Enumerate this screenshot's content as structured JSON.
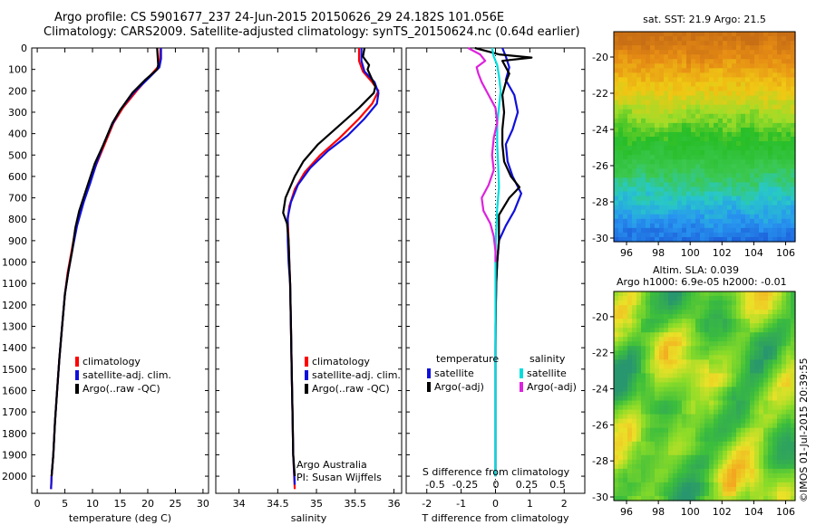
{
  "header": {
    "line1": "Argo profile: CS 5901677_237 24-Jun-2015 20150626_29 24.182S 101.056E",
    "line2": "Climatology: CARS2009. Satellite-adjusted climatology: synTS_20150624.nc (0.64d earlier)"
  },
  "credit": "©IMOS 01-Jul-2015 20:39:55",
  "colors": {
    "climatology": "#ff0000",
    "satellite": "#1010dd",
    "argo": "#000000",
    "salinity_sat": "#00dddd",
    "salinity_argo": "#dd22dd"
  },
  "chart_data": [
    {
      "type": "line",
      "panel": "temperature",
      "xlabel": "temperature (deg C)",
      "ylabel": "",
      "xlim": [
        -1,
        31
      ],
      "ylim": [
        2080,
        0
      ],
      "xticks": [
        "0",
        "5",
        "10",
        "15",
        "20",
        "25",
        "30"
      ],
      "yticks": [
        "0",
        "100",
        "200",
        "300",
        "400",
        "500",
        "600",
        "700",
        "800",
        "900",
        "1000",
        "1100",
        "1200",
        "1300",
        "1400",
        "1500",
        "1600",
        "1700",
        "1800",
        "1900",
        "2000"
      ],
      "legend": [
        "climatology",
        "satellite-adj. clim.",
        "Argo(..raw -QC)"
      ],
      "series": [
        {
          "name": "climatology",
          "color": "#ff0000",
          "points": [
            [
              22.3,
              0
            ],
            [
              22.2,
              50
            ],
            [
              21.8,
              90
            ],
            [
              20.4,
              130
            ],
            [
              18,
              200
            ],
            [
              15.5,
              280
            ],
            [
              13.8,
              350
            ],
            [
              12.2,
              450
            ],
            [
              10.6,
              550
            ],
            [
              9.2,
              650
            ],
            [
              7.8,
              750
            ],
            [
              6.9,
              850
            ],
            [
              6.2,
              950
            ],
            [
              5.5,
              1050
            ],
            [
              5,
              1150
            ],
            [
              4.5,
              1300
            ],
            [
              4,
              1450
            ],
            [
              3.6,
              1600
            ],
            [
              3.2,
              1750
            ],
            [
              2.9,
              1900
            ],
            [
              2.6,
              2000
            ],
            [
              2.5,
              2060
            ]
          ]
        },
        {
          "name": "satellite-adj. clim.",
          "color": "#1010dd",
          "points": [
            [
              22.4,
              0
            ],
            [
              22.4,
              50
            ],
            [
              22.1,
              90
            ],
            [
              20.2,
              140
            ],
            [
              17.4,
              210
            ],
            [
              15,
              290
            ],
            [
              13.5,
              360
            ],
            [
              12,
              450
            ],
            [
              10.7,
              540
            ],
            [
              9.6,
              630
            ],
            [
              8.4,
              720
            ],
            [
              7.2,
              830
            ],
            [
              6.3,
              950
            ],
            [
              5.6,
              1050
            ],
            [
              5,
              1150
            ],
            [
              4.5,
              1300
            ],
            [
              4,
              1450
            ],
            [
              3.6,
              1600
            ],
            [
              3.2,
              1750
            ],
            [
              2.9,
              1900
            ],
            [
              2.6,
              2000
            ],
            [
              2.5,
              2060
            ]
          ]
        },
        {
          "name": "Argo(..raw -QC)",
          "color": "#000000",
          "points": [
            [
              21.7,
              0
            ],
            [
              21.8,
              40
            ],
            [
              21.9,
              80
            ],
            [
              21.7,
              100
            ],
            [
              19.5,
              150
            ],
            [
              17.2,
              210
            ],
            [
              15,
              290
            ],
            [
              13.6,
              350
            ],
            [
              12,
              450
            ],
            [
              10.4,
              540
            ],
            [
              9,
              650
            ],
            [
              7.6,
              760
            ],
            [
              6.9,
              840
            ],
            [
              6.3,
              950
            ],
            [
              5.6,
              1050
            ],
            [
              5,
              1150
            ],
            [
              4.5,
              1300
            ],
            [
              4,
              1450
            ],
            [
              3.6,
              1600
            ],
            [
              3.2,
              1750
            ],
            [
              2.9,
              1900
            ],
            [
              2.6,
              2000
            ]
          ]
        }
      ]
    },
    {
      "type": "line",
      "panel": "salinity",
      "xlabel": "salinity",
      "xlim": [
        33.7,
        36.1
      ],
      "ylim": [
        2080,
        0
      ],
      "xticks": [
        "34",
        "34.5",
        "35",
        "35.5",
        "36"
      ],
      "legend": [
        "climatology",
        "satellite-adj. clim.",
        "Argo(..raw -QC)"
      ],
      "annotations": [
        "Argo Australia",
        "PI: Susan Wijffels"
      ],
      "series": [
        {
          "name": "climatology",
          "color": "#ff0000",
          "points": [
            [
              35.55,
              0
            ],
            [
              35.55,
              60
            ],
            [
              35.6,
              110
            ],
            [
              35.72,
              160
            ],
            [
              35.8,
              200
            ],
            [
              35.72,
              260
            ],
            [
              35.55,
              330
            ],
            [
              35.3,
              420
            ],
            [
              35.05,
              500
            ],
            [
              34.85,
              580
            ],
            [
              34.72,
              660
            ],
            [
              34.65,
              740
            ],
            [
              34.63,
              800
            ],
            [
              34.64,
              900
            ],
            [
              34.65,
              1000
            ],
            [
              34.66,
              1100
            ],
            [
              34.67,
              1300
            ],
            [
              34.68,
              1500
            ],
            [
              34.69,
              1700
            ],
            [
              34.7,
              1900
            ],
            [
              34.72,
              2060
            ]
          ]
        },
        {
          "name": "satellite-adj. clim.",
          "color": "#1010dd",
          "points": [
            [
              35.58,
              0
            ],
            [
              35.58,
              60
            ],
            [
              35.62,
              110
            ],
            [
              35.75,
              160
            ],
            [
              35.8,
              210
            ],
            [
              35.78,
              260
            ],
            [
              35.62,
              330
            ],
            [
              35.4,
              410
            ],
            [
              35.15,
              480
            ],
            [
              34.92,
              560
            ],
            [
              34.76,
              640
            ],
            [
              34.67,
              720
            ],
            [
              34.63,
              790
            ],
            [
              34.63,
              900
            ],
            [
              34.64,
              1000
            ],
            [
              34.66,
              1100
            ],
            [
              34.67,
              1300
            ],
            [
              34.68,
              1500
            ],
            [
              34.69,
              1700
            ],
            [
              34.7,
              1900
            ],
            [
              34.72,
              2040
            ]
          ]
        },
        {
          "name": "Argo(..raw -QC)",
          "color": "#000000",
          "points": [
            [
              35.62,
              0
            ],
            [
              35.6,
              40
            ],
            [
              35.68,
              80
            ],
            [
              35.66,
              100
            ],
            [
              35.76,
              180
            ],
            [
              35.74,
              210
            ],
            [
              35.55,
              280
            ],
            [
              35.3,
              360
            ],
            [
              35.02,
              450
            ],
            [
              34.83,
              530
            ],
            [
              34.72,
              600
            ],
            [
              34.6,
              700
            ],
            [
              34.57,
              770
            ],
            [
              34.62,
              820
            ],
            [
              34.64,
              900
            ],
            [
              34.65,
              1000
            ],
            [
              34.66,
              1100
            ],
            [
              34.67,
              1300
            ],
            [
              34.68,
              1500
            ],
            [
              34.69,
              1700
            ],
            [
              34.7,
              1900
            ],
            [
              34.72,
              2000
            ]
          ]
        }
      ]
    },
    {
      "type": "line",
      "panel": "difference",
      "xlabel": "T difference from climatology",
      "xlabel_top": "S difference from climatology",
      "xlim": [
        -2.6,
        2.6
      ],
      "ylim": [
        2080,
        0
      ],
      "xticks": [
        "-2",
        "-1",
        "0",
        "1",
        "2"
      ],
      "xticks_top": [
        "-0.5",
        "-0.25",
        "0",
        "0.25",
        "0.5"
      ],
      "legend_groups": [
        "temperature",
        "salinity"
      ],
      "legend": [
        "satellite",
        "Argo(-adj)",
        "satellite",
        "Argo(-adj)"
      ],
      "series": [
        {
          "name": "satellite",
          "group": "temperature",
          "color": "#1010dd",
          "points": [
            [
              0.2,
              0
            ],
            [
              0.3,
              40
            ],
            [
              0.4,
              90
            ],
            [
              0.3,
              150
            ],
            [
              0.55,
              220
            ],
            [
              0.65,
              300
            ],
            [
              0.5,
              380
            ],
            [
              0.3,
              450
            ],
            [
              0.35,
              530
            ],
            [
              0.5,
              600
            ],
            [
              0.75,
              680
            ],
            [
              0.55,
              760
            ],
            [
              0.3,
              830
            ],
            [
              0.1,
              900
            ],
            [
              0.05,
              1000
            ],
            [
              0.02,
              1100
            ],
            [
              0,
              1300
            ],
            [
              0,
              2000
            ]
          ]
        },
        {
          "name": "Argo(-adj)",
          "group": "temperature",
          "color": "#000000",
          "points": [
            [
              -0.6,
              0
            ],
            [
              0.1,
              30
            ],
            [
              1.05,
              45
            ],
            [
              0.2,
              60
            ],
            [
              0.3,
              90
            ],
            [
              0.4,
              120
            ],
            [
              0.3,
              160
            ],
            [
              0.2,
              220
            ],
            [
              0.25,
              300
            ],
            [
              0.2,
              380
            ],
            [
              0.2,
              450
            ],
            [
              0.25,
              530
            ],
            [
              0.45,
              600
            ],
            [
              0.7,
              650
            ],
            [
              0.4,
              700
            ],
            [
              0.1,
              780
            ],
            [
              0.1,
              900
            ],
            [
              0.05,
              1000
            ],
            [
              0.02,
              1100
            ],
            [
              0.01,
              1200
            ],
            [
              0,
              1400
            ],
            [
              0,
              2000
            ]
          ]
        },
        {
          "name": "satellite",
          "group": "salinity",
          "color": "#00dddd",
          "points": [
            [
              -0.1,
              0
            ],
            [
              -0.05,
              40
            ],
            [
              0.05,
              80
            ],
            [
              0.1,
              130
            ],
            [
              0.15,
              200
            ],
            [
              0.1,
              280
            ],
            [
              0.05,
              350
            ],
            [
              0.05,
              450
            ],
            [
              0.08,
              550
            ],
            [
              0.1,
              650
            ],
            [
              0.05,
              750
            ],
            [
              0.02,
              850
            ],
            [
              0.0,
              950
            ],
            [
              0.0,
              1050
            ],
            [
              0.0,
              1300
            ],
            [
              0.0,
              2000
            ]
          ]
        },
        {
          "name": "Argo(-adj)",
          "group": "salinity",
          "color": "#dd22dd",
          "points": [
            [
              -0.8,
              0
            ],
            [
              -0.45,
              30
            ],
            [
              -0.3,
              60
            ],
            [
              -0.55,
              90
            ],
            [
              -0.5,
              120
            ],
            [
              -0.4,
              160
            ],
            [
              -0.2,
              220
            ],
            [
              0.0,
              280
            ],
            [
              0.05,
              350
            ],
            [
              -0.05,
              420
            ],
            [
              -0.1,
              500
            ],
            [
              -0.05,
              570
            ],
            [
              -0.2,
              640
            ],
            [
              -0.4,
              700
            ],
            [
              -0.35,
              760
            ],
            [
              -0.15,
              820
            ],
            [
              -0.05,
              880
            ],
            [
              0.0,
              950
            ],
            [
              0.0,
              1000
            ]
          ]
        }
      ]
    },
    {
      "type": "heatmap",
      "panel": "sst-map",
      "title": "sat. SST: 21.9  Argo: 21.5",
      "xticks": [
        "96",
        "98",
        "100",
        "102",
        "104",
        "106"
      ],
      "yticks": [
        "-20",
        "-22",
        "-24",
        "-26",
        "-28",
        "-30"
      ],
      "xlim": [
        95.2,
        106.6
      ],
      "ylim": [
        -30.2,
        -18.6
      ]
    },
    {
      "type": "heatmap",
      "panel": "sla-map",
      "title_lines": [
        "Altim. SLA: 0.039",
        "Argo h1000: 6.9e-05  h2000: -0.01"
      ],
      "xticks": [
        "96",
        "98",
        "100",
        "102",
        "104",
        "106"
      ],
      "yticks": [
        "-20",
        "-22",
        "-24",
        "-26",
        "-28",
        "-30"
      ],
      "xlim": [
        95.2,
        106.6
      ],
      "ylim": [
        -30.2,
        -18.6
      ]
    }
  ]
}
